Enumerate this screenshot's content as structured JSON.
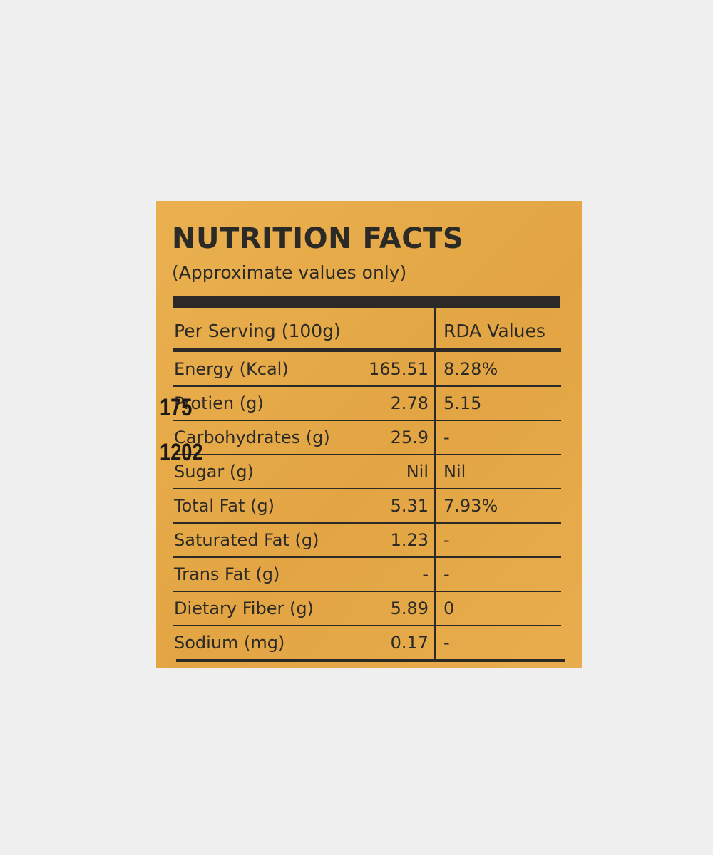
{
  "label": {
    "title": "NUTRITION FACTS",
    "subtitle": "(Approximate values only)",
    "header": [
      "Per Serving (100g)",
      "RDA Values"
    ],
    "rows": [
      [
        "Energy (Kcal)",
        "165.51",
        "8.28%"
      ],
      [
        "Protien (g)",
        "2.78",
        "5.15"
      ],
      [
        "Carbohydrates (g)",
        "25.9",
        "-"
      ],
      [
        "Sugar (g)",
        "Nil",
        "Nil"
      ],
      [
        "Total Fat (g)",
        "5.31",
        "7.93%"
      ],
      [
        "Saturated Fat (g)",
        "1.23",
        "-"
      ],
      [
        "Trans Fat (g)",
        "-",
        "-"
      ],
      [
        "Dietary Fiber (g)",
        "5.89",
        "0"
      ],
      [
        "Sodium (mg)",
        "0.17",
        "-"
      ]
    ],
    "stamps": [
      "175",
      "1202"
    ]
  }
}
